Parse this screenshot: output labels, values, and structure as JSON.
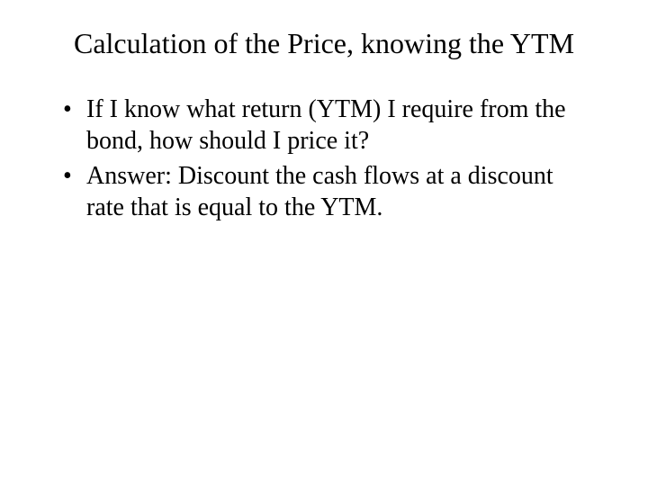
{
  "slide": {
    "title": "Calculation of the Price, knowing the YTM",
    "bullets": [
      "If I know what return (YTM) I require from the bond, how should I price it?",
      "Answer: Discount the cash flows at a discount rate that is equal to the YTM."
    ],
    "background_color": "#ffffff",
    "text_color": "#000000",
    "font_family": "Times New Roman",
    "title_fontsize": 32,
    "body_fontsize": 28
  }
}
